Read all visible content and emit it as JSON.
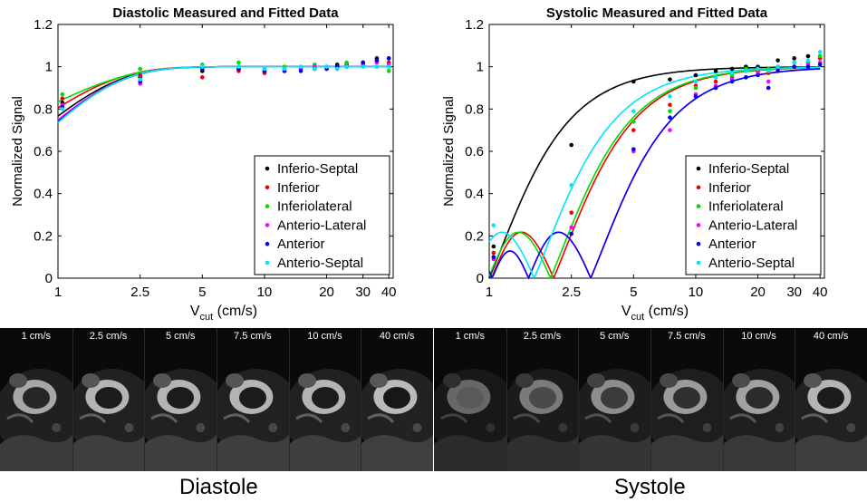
{
  "chart_data": [
    {
      "type": "scatter",
      "title": "Diastolic Measured and Fitted Data",
      "ylabel": "Normalized Signal",
      "xlabel": "V",
      "xlabel_sub": "cut",
      "xlabel_units": "(cm/s)",
      "xscale": "log",
      "xlim": [
        1,
        42
      ],
      "ylim": [
        0,
        1.2
      ],
      "xticks": [
        1,
        2.5,
        5,
        10,
        20,
        30,
        40
      ],
      "xtick_labels": [
        "1",
        "2.5",
        "5",
        "10",
        "20",
        "30",
        "40"
      ],
      "yticks": [
        0,
        0.2,
        0.4,
        0.6,
        0.8,
        1,
        1.2
      ],
      "ytick_labels": [
        "0",
        "0.2",
        "0.4",
        "0.6",
        "0.8",
        "1",
        "1.2"
      ],
      "legend_position": "bottom-right",
      "x": [
        1.05,
        2.5,
        5,
        7.5,
        10,
        12.5,
        15,
        17.5,
        20,
        22.5,
        25,
        30,
        35,
        40
      ],
      "series": [
        {
          "name": "Inferio-Septal",
          "color": "#000000",
          "points": [
            0.83,
            0.95,
            0.98,
            0.99,
            0.98,
            0.99,
            0.99,
            1.0,
            1.0,
            1.01,
            1.01,
            1.02,
            1.04,
            1.04
          ],
          "fit": {
            "model": "decay",
            "A": 0.9,
            "k": 1.35
          }
        },
        {
          "name": "Inferior",
          "color": "#ee0000",
          "points": [
            0.85,
            0.96,
            0.95,
            0.98,
            0.97,
            0.98,
            0.99,
            0.99,
            1.0,
            1.0,
            1.01,
            1.02,
            1.03,
            1.02
          ],
          "fit": {
            "model": "decay",
            "A": 0.75,
            "k": 1.35
          }
        },
        {
          "name": "Inferiolateral",
          "color": "#00dd00",
          "points": [
            0.87,
            0.99,
            1.01,
            1.02,
            0.99,
            1.0,
            1.0,
            1.01,
            1.0,
            1.0,
            1.02,
            1.01,
            1.0,
            0.98
          ],
          "fit": {
            "model": "decay",
            "A": 0.55,
            "k": 1.2
          }
        },
        {
          "name": "Anterio-Lateral",
          "color": "#ff00ff",
          "points": [
            0.82,
            0.92,
            0.99,
            1.0,
            0.98,
            0.98,
            0.99,
            1.0,
            0.99,
            0.99,
            1.0,
            1.01,
            1.02,
            1.01
          ],
          "fit": {
            "model": "decay",
            "A": 0.97,
            "k": 1.35
          }
        },
        {
          "name": "Anterior",
          "color": "#0000ee",
          "points": [
            0.81,
            0.93,
            0.99,
            0.99,
            0.98,
            0.98,
            0.98,
            0.99,
            0.99,
            1.0,
            1.0,
            1.02,
            1.03,
            1.04
          ],
          "fit": {
            "model": "decay",
            "A": 1.0,
            "k": 1.35
          }
        },
        {
          "name": "Anterio-Septal",
          "color": "#00e5ff",
          "points": [
            0.8,
            0.94,
            1.0,
            1.0,
            0.99,
            0.99,
            1.0,
            0.99,
            1.0,
            0.99,
            1.0,
            1.0,
            1.0,
            1.0
          ],
          "fit": {
            "model": "decay",
            "A": 1.05,
            "k": 1.38
          }
        }
      ]
    },
    {
      "type": "scatter",
      "title": "Systolic Measured and Fitted Data",
      "ylabel": "Normalized Signal",
      "xlabel": "V",
      "xlabel_sub": "cut",
      "xlabel_units": "(cm/s)",
      "xscale": "log",
      "xlim": [
        1,
        42
      ],
      "ylim": [
        0,
        1.2
      ],
      "xticks": [
        1,
        2.5,
        5,
        10,
        20,
        30,
        40
      ],
      "xtick_labels": [
        "1",
        "2.5",
        "5",
        "10",
        "20",
        "30",
        "40"
      ],
      "yticks": [
        0,
        0.2,
        0.4,
        0.6,
        0.8,
        1,
        1.2
      ],
      "ytick_labels": [
        "0",
        "0.2",
        "0.4",
        "0.6",
        "0.8",
        "1",
        "1.2"
      ],
      "legend_position": "bottom-right",
      "x": [
        1.05,
        2.5,
        5,
        7.5,
        10,
        12.5,
        15,
        17.5,
        20,
        22.5,
        25,
        30,
        35,
        40
      ],
      "series": [
        {
          "name": "Inferio-Septal",
          "color": "#000000",
          "points": [
            0.15,
            0.63,
            0.93,
            0.94,
            0.96,
            0.98,
            0.99,
            1.0,
            1.0,
            0.98,
            1.03,
            1.04,
            1.05,
            1.05
          ],
          "fit": {
            "model": "sinc",
            "zero": 1.0
          }
        },
        {
          "name": "Inferior",
          "color": "#ee0000",
          "points": [
            0.12,
            0.31,
            0.7,
            0.82,
            0.91,
            0.93,
            0.95,
            0.98,
            0.98,
            0.97,
            1.0,
            1.02,
            1.02,
            1.04
          ],
          "fit": {
            "model": "sinc",
            "zero": 2.05
          }
        },
        {
          "name": "Inferiolateral",
          "color": "#00dd00",
          "points": [
            0.1,
            0.24,
            0.74,
            0.79,
            0.9,
            0.95,
            0.96,
            0.99,
            0.99,
            0.99,
            1.0,
            1.0,
            1.02,
            1.05
          ],
          "fit": {
            "model": "sinc",
            "zero": 1.98
          }
        },
        {
          "name": "Anterio-Lateral",
          "color": "#ff00ff",
          "points": [
            0.09,
            0.24,
            0.6,
            0.7,
            0.87,
            0.91,
            0.94,
            0.95,
            0.97,
            0.93,
            0.99,
            1.0,
            1.01,
            1.02
          ],
          "fit": {
            "model": "sinc",
            "zero": 3.1
          }
        },
        {
          "name": "Anterior",
          "color": "#0000ee",
          "points": [
            0.1,
            0.21,
            0.61,
            0.76,
            0.86,
            0.9,
            0.93,
            0.95,
            0.96,
            0.9,
            0.98,
            1.0,
            1.0,
            1.01
          ],
          "fit": {
            "model": "sinc",
            "zero": 3.1
          }
        },
        {
          "name": "Anterio-Septal",
          "color": "#00e5ff",
          "points": [
            0.25,
            0.44,
            0.79,
            0.86,
            0.93,
            0.95,
            0.97,
            0.98,
            0.99,
            0.98,
            1.0,
            1.02,
            1.03,
            1.07
          ],
          "fit": {
            "model": "sinc",
            "zero": 1.65
          }
        }
      ]
    }
  ],
  "image_strips": [
    {
      "phase": "Diastole",
      "labels": [
        "1 cm/s",
        "2.5 cm/s",
        "5 cm/s",
        "7.5 cm/s",
        "10 cm/s",
        "40 cm/s"
      ],
      "brightness": [
        0.75,
        0.85,
        0.85,
        0.85,
        0.85,
        0.9
      ]
    },
    {
      "phase": "Systole",
      "labels": [
        "1 cm/s",
        "2.5 cm/s",
        "5 cm/s",
        "7.5 cm/s",
        "10 cm/s",
        "40 cm/s"
      ],
      "brightness": [
        0.25,
        0.4,
        0.55,
        0.65,
        0.7,
        0.85
      ]
    }
  ]
}
